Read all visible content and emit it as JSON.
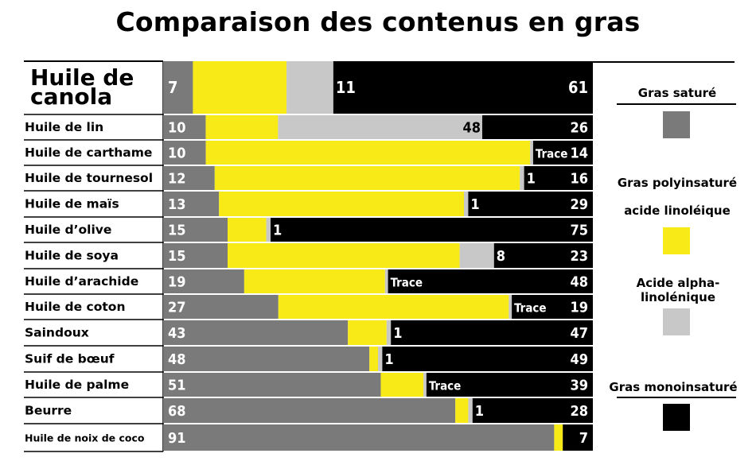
{
  "title": "Comparaison des contenus en gras",
  "colors": {
    "sature": "#7a7a7a",
    "linoleique": "#f7ea16",
    "alpha": "#c8c8c8",
    "mono": "#000000"
  },
  "legend": {
    "sature": "Gras saturé",
    "poly": "Gras polyinsaturé",
    "linoleique": "acide linoléique",
    "alpha_line1": "Acide alpha-",
    "alpha_line2": "linolénique",
    "mono": "Gras monoinsaturé"
  },
  "chart_data": {
    "type": "bar",
    "stacked": true,
    "orientation": "horizontal",
    "title": "Comparaison des contenus en gras",
    "categories": [
      "Huile de canola",
      "Huile de lin",
      "Huile de carthame",
      "Huile de tournesol",
      "Huile de maïs",
      "Huile d’olive",
      "Huile de soya",
      "Huile d’arachide",
      "Huile de coton",
      "Saindoux",
      "Suif de bœuf",
      "Huile de palme",
      "Beurre",
      "Huile de noix de coco"
    ],
    "series": [
      {
        "name": "Gras saturé",
        "values": [
          7,
          10,
          10,
          12,
          13,
          15,
          15,
          19,
          27,
          43,
          48,
          51,
          68,
          91
        ]
      },
      {
        "name": "acide linoléique",
        "values": [
          22,
          17,
          76,
          71,
          57,
          9,
          54,
          33,
          54,
          9,
          2,
          10,
          3,
          2
        ]
      },
      {
        "name": "Acide alpha-linolénique",
        "values": [
          11,
          48,
          "Trace",
          1,
          1,
          1,
          8,
          "Trace",
          "Trace",
          1,
          1,
          "Trace",
          1,
          null
        ]
      },
      {
        "name": "Gras monoinsaturé",
        "values": [
          61,
          26,
          14,
          16,
          29,
          75,
          23,
          48,
          19,
          47,
          49,
          39,
          28,
          7
        ]
      }
    ],
    "xlim": [
      0,
      100
    ]
  }
}
